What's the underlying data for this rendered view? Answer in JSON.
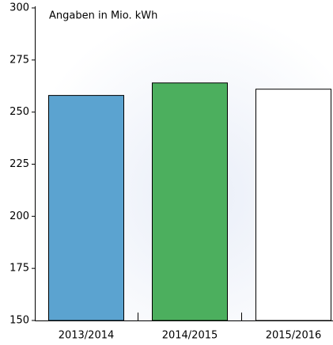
{
  "chart_data": {
    "type": "bar",
    "annotation": "Angaben in Mio. kWh",
    "categories": [
      "2013/2014",
      "2014/2015",
      "2015/2016"
    ],
    "values": [
      258,
      264,
      261
    ],
    "colors": [
      "#5ba3d0",
      "#4caf5e",
      "#ffffff"
    ],
    "edge_color": "#000000",
    "ylim": [
      150,
      300
    ],
    "yticks": [
      150,
      175,
      200,
      225,
      250,
      275,
      300
    ],
    "grid": false
  }
}
